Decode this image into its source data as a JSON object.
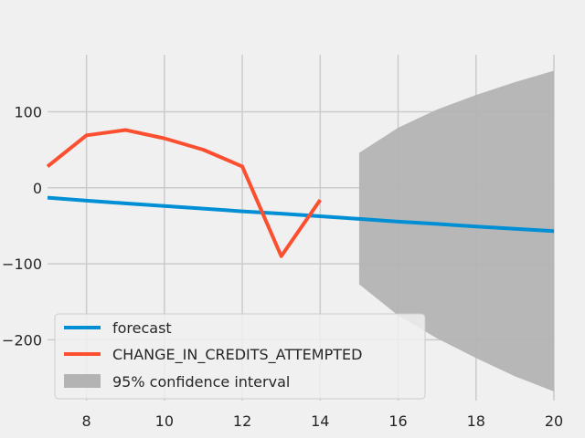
{
  "chart_data": {
    "type": "line",
    "title": "",
    "xlabel": "",
    "ylabel": "",
    "xlim": [
      7,
      20
    ],
    "ylim": [
      -280,
      175
    ],
    "grid": true,
    "legend_position": "lower-left",
    "x_ticks": [
      8,
      10,
      12,
      14,
      16,
      18,
      20
    ],
    "y_ticks": [
      -200,
      -100,
      0,
      100
    ],
    "series": [
      {
        "name": "forecast",
        "color": "#008fd5",
        "x": [
          7,
          8,
          9,
          10,
          11,
          12,
          13,
          14,
          15,
          16,
          17,
          18,
          19,
          20
        ],
        "y": [
          -13,
          -17,
          -20.5,
          -24,
          -27.5,
          -31,
          -34,
          -37.5,
          -41,
          -44.5,
          -47.5,
          -51,
          -54,
          -57
        ]
      },
      {
        "name": "CHANGE_IN_CREDITS_ATTEMPTED",
        "color": "#fc4f30",
        "x": [
          7,
          8,
          9,
          10,
          11,
          12,
          13,
          14
        ],
        "y": [
          28,
          69,
          76,
          65,
          50,
          28,
          -90,
          -16
        ]
      }
    ],
    "confidence_interval": {
      "name": "95% confidence interval",
      "color": "#b3b3b3",
      "x": [
        15,
        16,
        17,
        18,
        19,
        20
      ],
      "upper": [
        46,
        79,
        103,
        122,
        139,
        154
      ],
      "lower": [
        -127,
        -168,
        -198,
        -224,
        -248,
        -268
      ]
    }
  }
}
